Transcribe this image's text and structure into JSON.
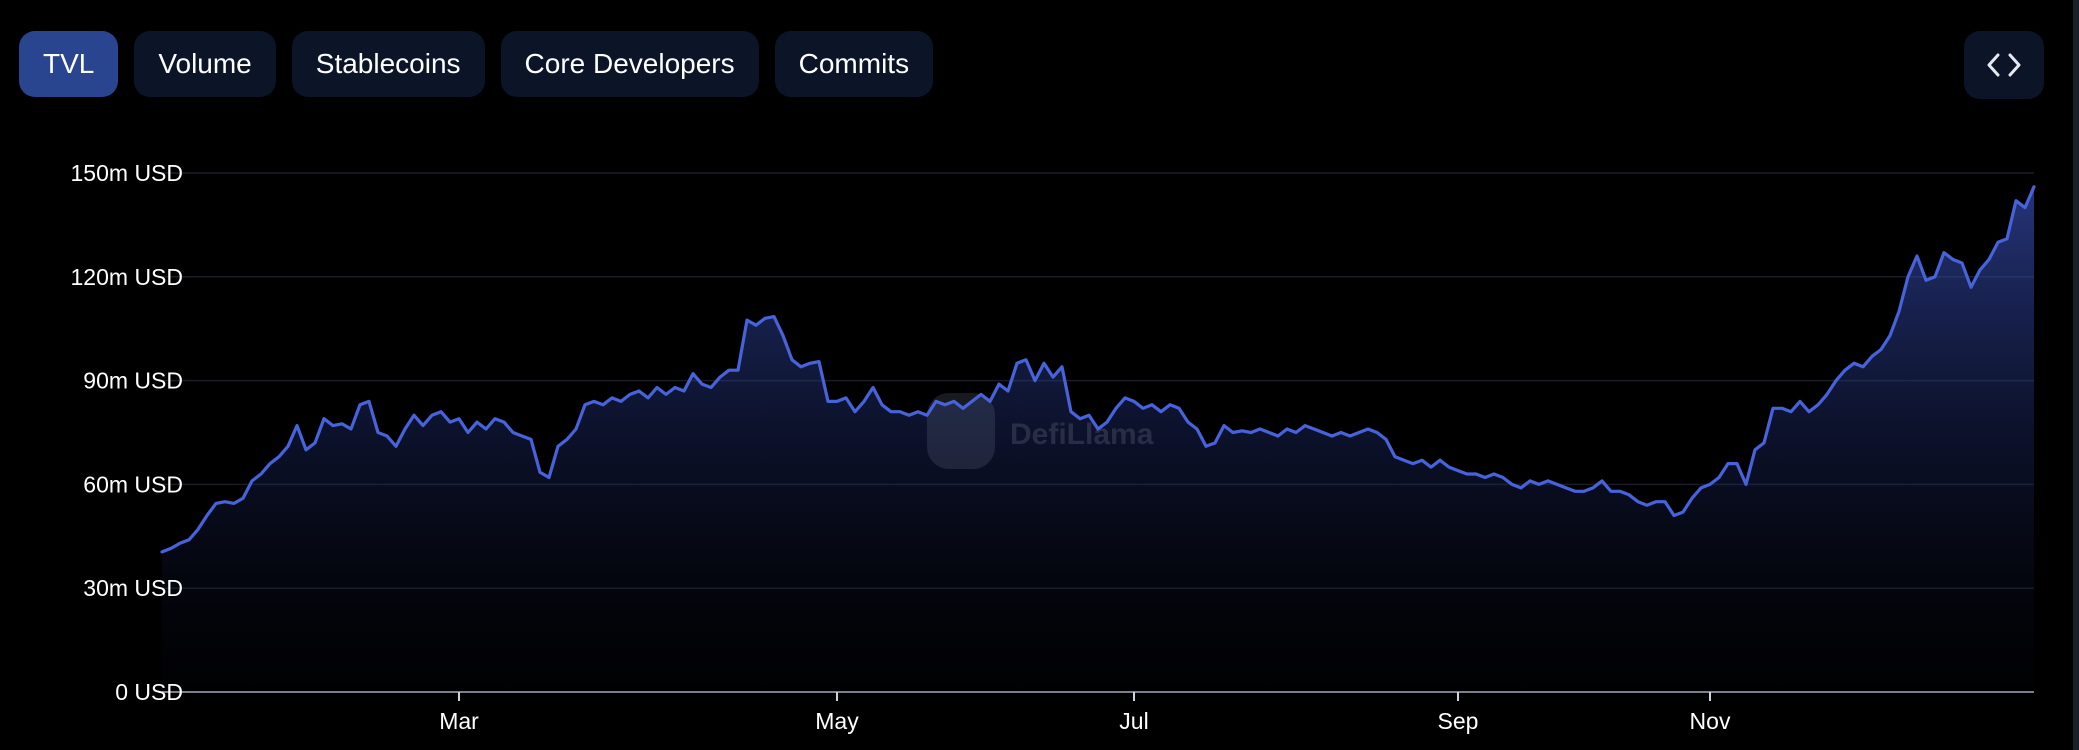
{
  "tabs": [
    {
      "label": "TVL",
      "active": true
    },
    {
      "label": "Volume",
      "active": false
    },
    {
      "label": "Stablecoins",
      "active": false
    },
    {
      "label": "Core Developers",
      "active": false
    },
    {
      "label": "Commits",
      "active": false
    }
  ],
  "embed_icon": "code-brackets-icon",
  "watermark": {
    "text": "DefiLlama",
    "icon": "llama-logo-icon"
  },
  "colors": {
    "line": "#4763dc",
    "tab_active": "#2a4590",
    "tab_inactive": "#0c1527",
    "background": "#000000"
  },
  "chart_data": {
    "type": "area",
    "title": "",
    "xlabel": "",
    "ylabel": "",
    "x_ticks": [
      "Mar",
      "May",
      "Jul",
      "Sep",
      "Nov"
    ],
    "y_ticks": [
      "0 USD",
      "30m USD",
      "60m USD",
      "90m USD",
      "120m USD",
      "150m USD"
    ],
    "ylim": [
      0,
      150000000
    ],
    "grid": true,
    "legend": "none",
    "series": [
      {
        "points": [
          [
            "Jan",
            40.5
          ],
          [
            "Jan",
            41.5
          ],
          [
            "Jan",
            43
          ],
          [
            "Jan",
            44
          ],
          [
            "Jan",
            47
          ],
          [
            "Feb",
            51
          ],
          [
            "Feb",
            54.5
          ],
          [
            "Feb",
            55
          ],
          [
            "Feb",
            54.5
          ],
          [
            "Feb",
            56
          ],
          [
            "Feb",
            61
          ],
          [
            "Feb",
            63
          ],
          [
            "Feb",
            66
          ],
          [
            "Feb",
            68
          ],
          [
            "Feb",
            71
          ],
          [
            "Feb",
            77
          ],
          [
            "Feb",
            70
          ],
          [
            "Feb",
            72
          ],
          [
            "Feb",
            79
          ],
          [
            "Feb",
            77
          ],
          [
            "Feb",
            77.5
          ],
          [
            "Feb",
            76
          ],
          [
            "Feb",
            83
          ],
          [
            "Feb",
            84
          ],
          [
            "Feb",
            75
          ],
          [
            "Feb",
            74
          ],
          [
            "Feb",
            71
          ],
          [
            "Feb",
            76
          ],
          [
            "Feb",
            80
          ],
          [
            "Feb",
            77
          ],
          [
            "Feb",
            80
          ],
          [
            "Feb",
            81
          ],
          [
            "Feb",
            78
          ],
          [
            "Mar",
            79
          ],
          [
            "Mar",
            75
          ],
          [
            "Mar",
            78
          ],
          [
            "Mar",
            76
          ],
          [
            "Mar",
            79
          ],
          [
            "Mar",
            78
          ],
          [
            "Mar",
            75
          ],
          [
            "Mar",
            74
          ],
          [
            "Mar",
            73
          ],
          [
            "Mar",
            63.5
          ],
          [
            "Mar",
            62
          ],
          [
            "Mar",
            71
          ],
          [
            "Mar",
            73
          ],
          [
            "Mar",
            76
          ],
          [
            "Mar",
            83
          ],
          [
            "Mar",
            84
          ],
          [
            "Mar",
            83
          ],
          [
            "Mar",
            85
          ],
          [
            "Mar",
            84
          ],
          [
            "Apr",
            86
          ],
          [
            "Apr",
            87
          ],
          [
            "Apr",
            85
          ],
          [
            "Apr",
            88
          ],
          [
            "Apr",
            86
          ],
          [
            "Apr",
            88
          ],
          [
            "Apr",
            87
          ],
          [
            "Apr",
            92
          ],
          [
            "Apr",
            89
          ],
          [
            "Apr",
            88
          ],
          [
            "Apr",
            91
          ],
          [
            "Apr",
            93
          ],
          [
            "Apr",
            93
          ],
          [
            "Apr",
            107.5
          ],
          [
            "Apr",
            106
          ],
          [
            "Apr",
            108
          ],
          [
            "Apr",
            108.5
          ],
          [
            "Apr",
            103
          ],
          [
            "Apr",
            96
          ],
          [
            "Apr",
            94
          ],
          [
            "Apr",
            95
          ],
          [
            "Apr",
            95.5
          ],
          [
            "Apr",
            84
          ],
          [
            "May",
            84
          ],
          [
            "May",
            85
          ],
          [
            "May",
            81
          ],
          [
            "May",
            84
          ],
          [
            "May",
            88
          ],
          [
            "May",
            83
          ],
          [
            "May",
            81
          ],
          [
            "May",
            81
          ],
          [
            "May",
            80
          ],
          [
            "May",
            81
          ],
          [
            "May",
            80
          ],
          [
            "May",
            84
          ],
          [
            "May",
            83
          ],
          [
            "May",
            84
          ],
          [
            "May",
            82
          ],
          [
            "Jun",
            84
          ],
          [
            "Jun",
            86
          ],
          [
            "Jun",
            84
          ],
          [
            "Jun",
            89
          ],
          [
            "Jun",
            87
          ],
          [
            "Jun",
            95
          ],
          [
            "Jun",
            96
          ],
          [
            "Jun",
            90
          ],
          [
            "Jun",
            95
          ],
          [
            "Jun",
            91
          ],
          [
            "Jun",
            94
          ],
          [
            "Jun",
            81
          ],
          [
            "Jun",
            79
          ],
          [
            "Jun",
            80
          ],
          [
            "Jun",
            76
          ],
          [
            "Jun",
            78
          ],
          [
            "Jun",
            82
          ],
          [
            "Jun",
            85
          ],
          [
            "Jul",
            84
          ],
          [
            "Jul",
            82
          ],
          [
            "Jul",
            83
          ],
          [
            "Jul",
            81
          ],
          [
            "Jul",
            83
          ],
          [
            "Jul",
            82
          ],
          [
            "Jul",
            78
          ],
          [
            "Jul",
            76
          ],
          [
            "Jul",
            71
          ],
          [
            "Jul",
            72
          ],
          [
            "Jul",
            77
          ],
          [
            "Jul",
            75
          ],
          [
            "Jul",
            75.5
          ],
          [
            "Jul",
            75
          ],
          [
            "Jul",
            76
          ],
          [
            "Jul",
            75
          ],
          [
            "Jul",
            74
          ],
          [
            "Aug",
            76
          ],
          [
            "Aug",
            75
          ],
          [
            "Aug",
            77
          ],
          [
            "Aug",
            76
          ],
          [
            "Aug",
            75
          ],
          [
            "Aug",
            74
          ],
          [
            "Aug",
            75
          ],
          [
            "Aug",
            74
          ],
          [
            "Aug",
            75
          ],
          [
            "Aug",
            76
          ],
          [
            "Aug",
            75
          ],
          [
            "Aug",
            73
          ],
          [
            "Aug",
            68
          ],
          [
            "Aug",
            67
          ],
          [
            "Aug",
            66
          ],
          [
            "Aug",
            67
          ],
          [
            "Aug",
            65
          ],
          [
            "Aug",
            67
          ],
          [
            "Aug",
            65
          ],
          [
            "Sep",
            64
          ],
          [
            "Sep",
            63
          ],
          [
            "Sep",
            63
          ],
          [
            "Sep",
            62
          ],
          [
            "Sep",
            63
          ],
          [
            "Sep",
            62
          ],
          [
            "Sep",
            60
          ],
          [
            "Sep",
            59
          ],
          [
            "Sep",
            61
          ],
          [
            "Sep",
            60
          ],
          [
            "Sep",
            61
          ],
          [
            "Sep",
            60
          ],
          [
            "Sep",
            59
          ],
          [
            "Oct",
            58
          ],
          [
            "Oct",
            58
          ],
          [
            "Oct",
            59
          ],
          [
            "Oct",
            61
          ],
          [
            "Oct",
            58
          ],
          [
            "Oct",
            58
          ],
          [
            "Oct",
            57
          ],
          [
            "Oct",
            55
          ],
          [
            "Oct",
            54
          ],
          [
            "Oct",
            55
          ],
          [
            "Oct",
            55
          ],
          [
            "Oct",
            51
          ],
          [
            "Oct",
            52
          ],
          [
            "Oct",
            56
          ],
          [
            "Oct",
            59
          ],
          [
            "Nov",
            60
          ],
          [
            "Nov",
            62
          ],
          [
            "Nov",
            66
          ],
          [
            "Nov",
            66
          ],
          [
            "Nov",
            60
          ],
          [
            "Nov",
            70
          ],
          [
            "Nov",
            72
          ],
          [
            "Nov",
            82
          ],
          [
            "Nov",
            82
          ],
          [
            "Nov",
            81
          ],
          [
            "Nov",
            84
          ],
          [
            "Nov",
            81
          ],
          [
            "Nov",
            83
          ],
          [
            "Nov",
            86
          ],
          [
            "Nov",
            90
          ],
          [
            "Nov",
            93
          ],
          [
            "Nov",
            95
          ],
          [
            "Dec",
            94
          ],
          [
            "Dec",
            97
          ],
          [
            "Dec",
            99
          ],
          [
            "Dec",
            103
          ],
          [
            "Dec",
            110
          ],
          [
            "Dec",
            120
          ],
          [
            "Dec",
            126
          ],
          [
            "Dec",
            119
          ],
          [
            "Dec",
            120
          ],
          [
            "Dec",
            127
          ],
          [
            "Dec",
            125
          ],
          [
            "Dec",
            124
          ],
          [
            "Dec",
            117
          ],
          [
            "Dec",
            122
          ],
          [
            "Dec",
            125
          ],
          [
            "Dec",
            130
          ],
          [
            "Dec",
            131
          ],
          [
            "Dec",
            142
          ],
          [
            "Dec",
            140
          ],
          [
            "Dec",
            146
          ]
        ],
        "unit": "m USD"
      }
    ]
  }
}
